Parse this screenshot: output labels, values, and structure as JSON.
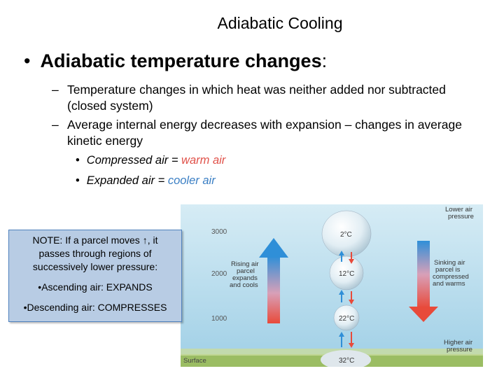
{
  "title": "Adiabatic Cooling",
  "bullet": {
    "term": "Adiabatic temperature changes",
    "colon": ":"
  },
  "subbullets": [
    {
      "line1": "Temperature changes in which heat was neither added nor subtracted",
      "line2": "(closed system)"
    },
    {
      "line1": "Average internal energy decreases with expansion – changes in average",
      "line2": "kinetic energy"
    }
  ],
  "subsub": [
    {
      "prefix": "Compressed air = ",
      "colored": "warm air"
    },
    {
      "prefix": "Expanded air = ",
      "colored": "cooler air"
    }
  ],
  "note": {
    "line1": "NOTE: If a parcel moves ↑, it",
    "line2": "passes through regions of",
    "line3": "successively lower pressure:",
    "item1": "•Ascending air: EXPANDS",
    "item2": "•Descending air: COMPRESSES"
  },
  "figure": {
    "altitudes": [
      "3000",
      "2000",
      "1000"
    ],
    "surface_label": "Surface",
    "top_right": [
      "Lower air",
      "pressure"
    ],
    "bottom_right": [
      "Higher air",
      "pressure"
    ],
    "rising_label": [
      "Rising air",
      "parcel",
      "expands",
      "and cools"
    ],
    "sinking_label": [
      "Sinking air",
      "parcel is",
      "compressed",
      "and warms"
    ],
    "parcel_temps": [
      "2°C",
      "12°C",
      "22°C",
      "32°C"
    ],
    "colors": {
      "warm": "#e0524a",
      "cool": "#3b7fc4",
      "sky_top": "#c9e6f2",
      "ground": "#8fb35a"
    }
  }
}
